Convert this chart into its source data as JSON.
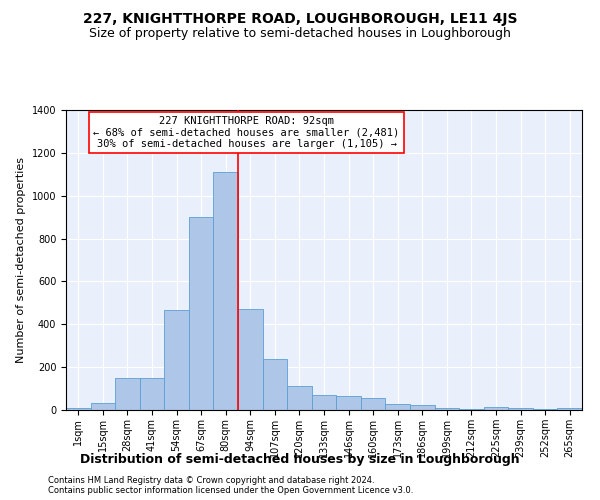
{
  "title": "227, KNIGHTTHORPE ROAD, LOUGHBOROUGH, LE11 4JS",
  "subtitle": "Size of property relative to semi-detached houses in Loughborough",
  "xlabel": "Distribution of semi-detached houses by size in Loughborough",
  "ylabel": "Number of semi-detached properties",
  "bar_labels": [
    "1sqm",
    "15sqm",
    "28sqm",
    "41sqm",
    "54sqm",
    "67sqm",
    "80sqm",
    "94sqm",
    "107sqm",
    "120sqm",
    "133sqm",
    "146sqm",
    "160sqm",
    "173sqm",
    "186sqm",
    "199sqm",
    "212sqm",
    "225sqm",
    "239sqm",
    "252sqm",
    "265sqm"
  ],
  "bar_values": [
    10,
    35,
    150,
    150,
    465,
    900,
    1110,
    470,
    240,
    110,
    70,
    65,
    55,
    28,
    22,
    10,
    5,
    15,
    10,
    5,
    10
  ],
  "bar_color": "#aec6e8",
  "bar_edge_color": "#5a9fd4",
  "property_line_x": 6.5,
  "annotation_text": "227 KNIGHTTHORPE ROAD: 92sqm\n← 68% of semi-detached houses are smaller (2,481)\n30% of semi-detached houses are larger (1,105) →",
  "ylim": [
    0,
    1400
  ],
  "yticks": [
    0,
    200,
    400,
    600,
    800,
    1000,
    1200,
    1400
  ],
  "footnote1": "Contains HM Land Registry data © Crown copyright and database right 2024.",
  "footnote2": "Contains public sector information licensed under the Open Government Licence v3.0.",
  "bg_color": "#eaf0fb",
  "title_fontsize": 10,
  "subtitle_fontsize": 9,
  "xlabel_fontsize": 9,
  "ylabel_fontsize": 8,
  "tick_fontsize": 7,
  "footnote_fontsize": 6,
  "annot_fontsize": 7.5
}
